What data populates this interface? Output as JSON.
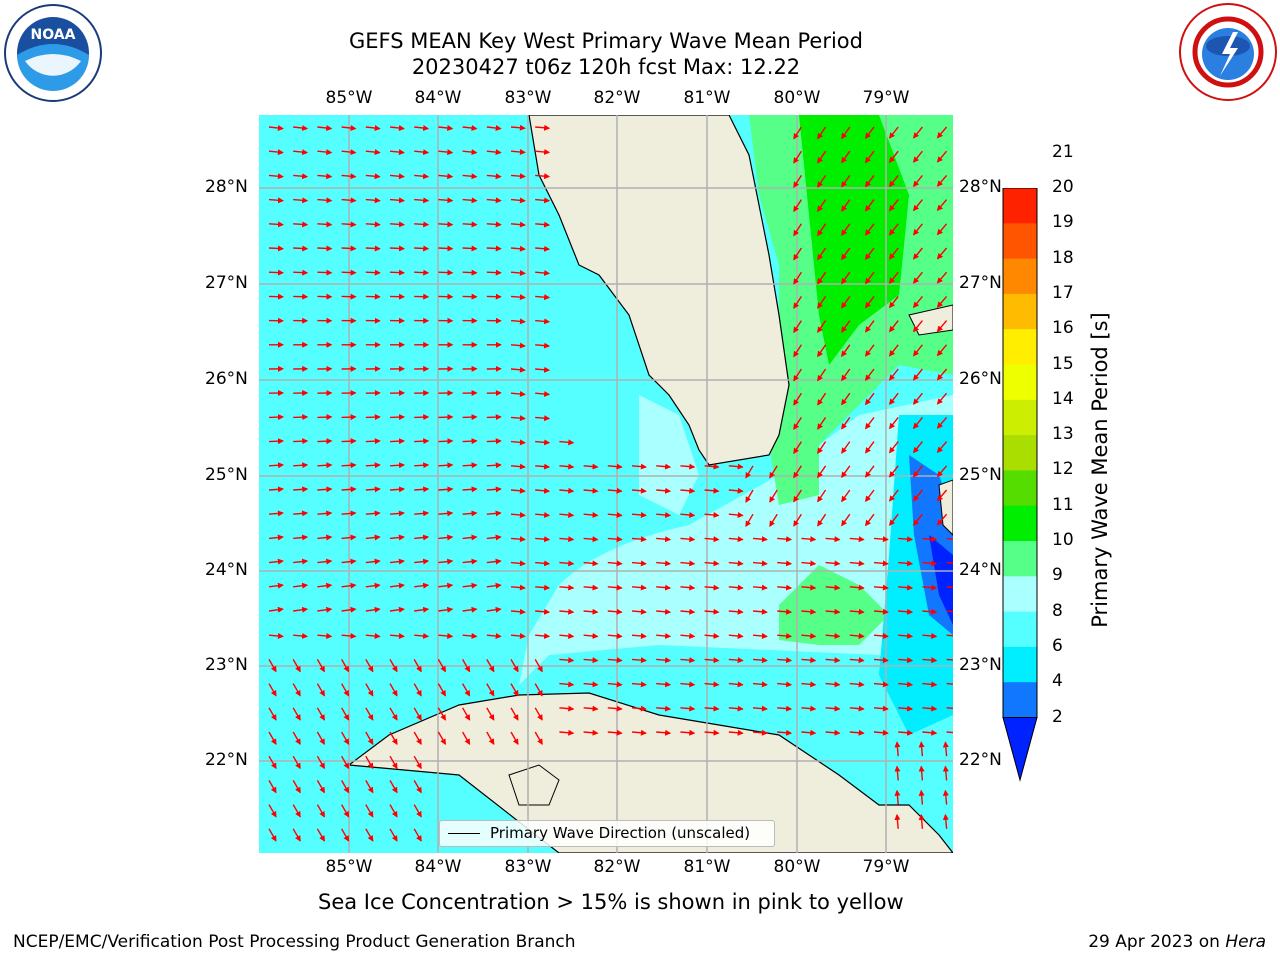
{
  "header": {
    "title_line1": "GEFS MEAN Key West Primary Wave Mean Period",
    "title_line2": "20230427 t06z 120h fcst   Max: 12.22"
  },
  "logos": {
    "left": "NOAA",
    "right": "NATIONAL WEATHER SERVICE"
  },
  "map": {
    "lon_labels": [
      "85°W",
      "84°W",
      "83°W",
      "82°W",
      "81°W",
      "80°W",
      "79°W"
    ],
    "lat_labels": [
      "28°N",
      "27°N",
      "26°N",
      "25°N",
      "24°N",
      "23°N",
      "22°N"
    ],
    "legend_label": "Primary Wave Direction (unscaled)",
    "arrow_color": "#ff0000",
    "land_color": "#efeddc"
  },
  "colorbar": {
    "label": "Primary Wave Mean Period [s]",
    "ticks": [
      "2",
      "4",
      "6",
      "8",
      "9",
      "10",
      "11",
      "12",
      "13",
      "14",
      "15",
      "16",
      "17",
      "18",
      "19",
      "20",
      "21"
    ],
    "colors": [
      "#0022ff",
      "#1177ff",
      "#00eeff",
      "#55ffff",
      "#aaffff",
      "#55ff88",
      "#00ee00",
      "#55dd00",
      "#aadd00",
      "#ccee00",
      "#eeff00",
      "#ffee00",
      "#ffbb00",
      "#ff8800",
      "#ff5500",
      "#ff2200"
    ]
  },
  "note": "Sea Ice Concentration > 15% is shown in pink to yellow",
  "footer": {
    "left": "NCEP/EMC/Verification Post Processing Product Generation Branch",
    "right_date": "29 Apr 2023 on ",
    "right_host": "Hera"
  }
}
